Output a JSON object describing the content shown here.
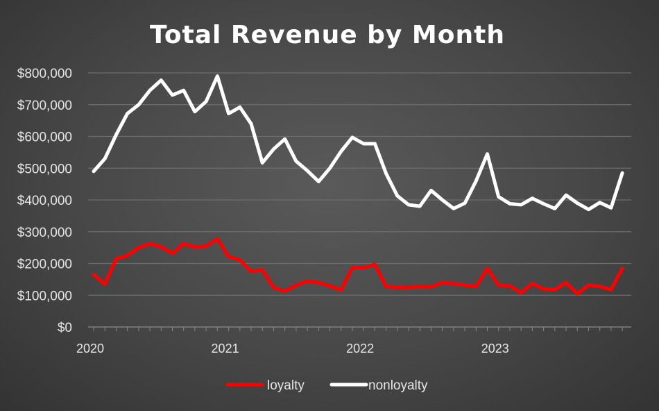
{
  "chart_data": {
    "type": "line",
    "title": "Total Revenue by Month",
    "xlabel": "",
    "ylabel": "",
    "ylim": [
      0,
      800000
    ],
    "y_ticks": [
      "$0",
      "$100,000",
      "$200,000",
      "$300,000",
      "$400,000",
      "$500,000",
      "$600,000",
      "$700,000",
      "$800,000"
    ],
    "x_tick_labels": [
      "2020",
      "2021",
      "2022",
      "2023"
    ],
    "x_start": "2020-01",
    "months": 48,
    "grid": "horizontal",
    "legend_position": "bottom",
    "series": [
      {
        "name": "loyalty",
        "color": "#ff0000",
        "values": [
          165000,
          135000,
          215000,
          225000,
          250000,
          263000,
          253000,
          232000,
          263000,
          252000,
          255000,
          278000,
          222000,
          212000,
          175000,
          180000,
          125000,
          113000,
          132000,
          145000,
          140000,
          130000,
          117000,
          187000,
          187000,
          197000,
          128000,
          125000,
          125000,
          128000,
          127000,
          140000,
          137000,
          132000,
          128000,
          185000,
          132000,
          130000,
          108000,
          137000,
          120000,
          118000,
          140000,
          105000,
          132000,
          128000,
          118000,
          185000
        ]
      },
      {
        "name": "nonloyalty",
        "color": "#ffffff",
        "values": [
          490000,
          530000,
          605000,
          672000,
          700000,
          745000,
          777000,
          730000,
          745000,
          678000,
          710000,
          790000,
          672000,
          692000,
          640000,
          517000,
          560000,
          592000,
          522000,
          492000,
          458000,
          500000,
          553000,
          597000,
          577000,
          577000,
          483000,
          413000,
          385000,
          380000,
          430000,
          400000,
          373000,
          390000,
          460000,
          545000,
          410000,
          388000,
          385000,
          405000,
          388000,
          373000,
          415000,
          390000,
          370000,
          392000,
          375000,
          485000
        ]
      }
    ]
  }
}
